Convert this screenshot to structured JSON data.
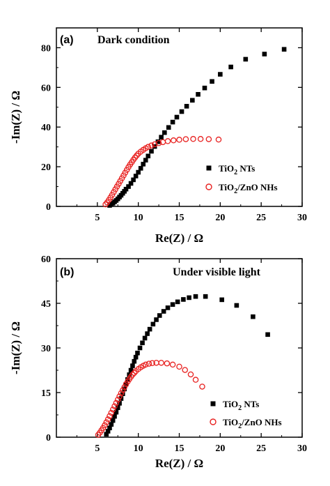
{
  "chart_data": [
    {
      "type": "scatter",
      "panel_label": "(a)",
      "title": "Dark condition",
      "xlabel": "Re(Z) / Ω",
      "ylabel": "-Im(Z) / Ω",
      "xlim": [
        0,
        30
      ],
      "ylim": [
        0,
        90
      ],
      "xticks": [
        5,
        10,
        15,
        20,
        25,
        30
      ],
      "yticks": [
        0,
        20,
        40,
        60,
        80
      ],
      "legend": {
        "placement": "lower-right",
        "entries": [
          {
            "base": "TiO",
            "sub": "2",
            "rest": " NTs"
          },
          {
            "base": "TiO",
            "sub": "2",
            "rest": "/ZnO NHs"
          }
        ]
      },
      "series": [
        {
          "name": "TiO2 NTs",
          "marker": "square",
          "color": "#000000",
          "x": [
            6.5,
            6.7,
            6.9,
            7.1,
            7.3,
            7.5,
            7.7,
            7.9,
            8.1,
            8.3,
            8.5,
            8.8,
            9.1,
            9.4,
            9.7,
            10.0,
            10.3,
            10.6,
            10.9,
            11.2,
            11.6,
            12.0,
            12.4,
            12.8,
            13.2,
            13.7,
            14.2,
            14.7,
            15.3,
            15.9,
            16.6,
            17.3,
            18.1,
            19.0,
            20.0,
            21.3,
            23.1,
            25.4,
            27.8
          ],
          "y": [
            0.5,
            1.0,
            1.6,
            2.3,
            3.0,
            3.8,
            4.7,
            5.6,
            6.6,
            7.6,
            8.7,
            10.0,
            11.6,
            13.4,
            15.3,
            17.2,
            19.2,
            21.3,
            23.3,
            25.4,
            27.8,
            30.2,
            32.6,
            34.9,
            37.2,
            39.8,
            42.5,
            45.0,
            47.8,
            50.5,
            53.5,
            56.5,
            59.7,
            63.0,
            66.6,
            70.3,
            74.2,
            76.8,
            79.2
          ]
        },
        {
          "name": "TiO2/ZnO NHs",
          "marker": "circle",
          "color": "#e8201f",
          "x": [
            6.0,
            6.2,
            6.4,
            6.6,
            6.8,
            7.0,
            7.2,
            7.4,
            7.6,
            7.8,
            8.0,
            8.2,
            8.4,
            8.6,
            8.8,
            9.0,
            9.2,
            9.4,
            9.6,
            9.8,
            10.0,
            10.3,
            10.6,
            10.9,
            11.2,
            11.6,
            12.0,
            12.5,
            13.0,
            13.6,
            14.3,
            15.0,
            15.8,
            16.7,
            17.6,
            18.6,
            19.8
          ],
          "y": [
            1.0,
            2.0,
            3.2,
            4.5,
            5.8,
            7.2,
            8.6,
            10.0,
            11.4,
            12.8,
            14.2,
            15.6,
            17.0,
            18.4,
            19.8,
            21.1,
            22.3,
            23.5,
            24.6,
            25.6,
            26.6,
            27.6,
            28.5,
            29.3,
            30.0,
            30.7,
            31.3,
            31.9,
            32.4,
            32.9,
            33.3,
            33.6,
            33.9,
            34.0,
            34.0,
            33.9,
            33.7
          ]
        }
      ]
    },
    {
      "type": "scatter",
      "panel_label": "(b)",
      "title": "Under visible light",
      "xlabel": "Re(Z) / Ω",
      "ylabel": "-Im(Z) / Ω",
      "xlim": [
        0,
        30
      ],
      "ylim": [
        0,
        60
      ],
      "xticks": [
        5,
        10,
        15,
        20,
        25,
        30
      ],
      "yticks": [
        0,
        15,
        30,
        45,
        60
      ],
      "legend": {
        "placement": "lower-right",
        "entries": [
          {
            "base": "TiO",
            "sub": "2",
            "rest": " NTs"
          },
          {
            "base": "TiO",
            "sub": "2",
            "rest": "/ZnO NHs"
          }
        ]
      },
      "series": [
        {
          "name": "TiO2 NTs",
          "marker": "square",
          "color": "#000000",
          "x": [
            6.1,
            6.3,
            6.5,
            6.7,
            6.9,
            7.1,
            7.3,
            7.5,
            7.7,
            7.9,
            8.1,
            8.3,
            8.5,
            8.7,
            8.9,
            9.1,
            9.3,
            9.5,
            9.7,
            9.9,
            10.2,
            10.5,
            10.8,
            11.1,
            11.4,
            11.8,
            12.2,
            12.6,
            13.1,
            13.6,
            14.2,
            14.8,
            15.5,
            16.2,
            17.0,
            18.2,
            20.2,
            22.0,
            24.0,
            25.8
          ],
          "y": [
            1.0,
            2.0,
            3.1,
            4.3,
            5.6,
            7.0,
            8.4,
            9.9,
            11.4,
            13.0,
            14.6,
            16.2,
            17.8,
            19.4,
            21.0,
            22.5,
            24.0,
            25.5,
            26.9,
            28.3,
            30.0,
            31.7,
            33.3,
            34.8,
            36.3,
            38.0,
            39.5,
            40.9,
            42.3,
            43.5,
            44.6,
            45.5,
            46.3,
            46.9,
            47.3,
            47.3,
            46.2,
            44.3,
            40.5,
            34.5
          ]
        },
        {
          "name": "TiO2/ZnO NHs",
          "marker": "circle",
          "color": "#e8201f",
          "x": [
            5.1,
            5.3,
            5.5,
            5.7,
            5.9,
            6.1,
            6.3,
            6.5,
            6.7,
            6.9,
            7.1,
            7.3,
            7.5,
            7.7,
            7.9,
            8.1,
            8.3,
            8.5,
            8.7,
            8.9,
            9.1,
            9.3,
            9.5,
            9.7,
            10.0,
            10.3,
            10.6,
            10.9,
            11.3,
            11.7,
            12.2,
            12.8,
            13.5,
            14.2,
            15.0,
            15.7,
            16.4,
            17.0,
            17.8
          ],
          "y": [
            0.8,
            1.5,
            2.3,
            3.1,
            4.0,
            5.0,
            6.0,
            7.1,
            8.2,
            9.3,
            10.4,
            11.5,
            12.6,
            13.7,
            14.8,
            15.8,
            16.8,
            17.8,
            18.7,
            19.5,
            20.3,
            21.0,
            21.6,
            22.2,
            22.9,
            23.5,
            24.0,
            24.4,
            24.7,
            24.9,
            25.0,
            25.0,
            24.8,
            24.4,
            23.7,
            22.6,
            21.1,
            19.3,
            17.0
          ]
        }
      ]
    }
  ]
}
